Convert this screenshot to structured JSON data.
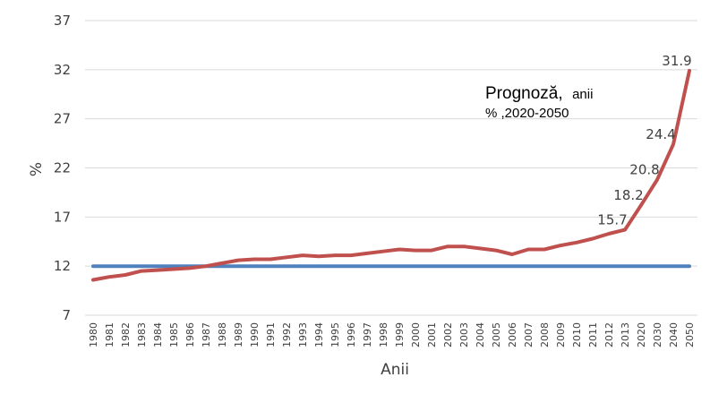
{
  "chart_data": {
    "type": "line",
    "title": "",
    "xlabel": "Anii",
    "ylabel": "%",
    "ylim": [
      7,
      37
    ],
    "yticks": [
      7,
      12,
      17,
      22,
      27,
      32,
      37
    ],
    "grid": "horizontal",
    "categories": [
      "1980",
      "1981",
      "1982",
      "1983",
      "1984",
      "1985",
      "1986",
      "1987",
      "1988",
      "1989",
      "1990",
      "1991",
      "1992",
      "1993",
      "1994",
      "1995",
      "1996",
      "1997",
      "1998",
      "1999",
      "2000",
      "2001",
      "2002",
      "2003",
      "2004",
      "2005",
      "2006",
      "2007",
      "2008",
      "2009",
      "2010",
      "2011",
      "2012",
      "2013",
      "2020",
      "2030",
      "2040",
      "2050"
    ],
    "series": [
      {
        "color": "#c0504d",
        "values": [
          10.6,
          10.9,
          11.1,
          11.5,
          11.6,
          11.7,
          11.8,
          12.0,
          12.3,
          12.6,
          12.7,
          12.7,
          12.9,
          13.1,
          13.0,
          13.1,
          13.1,
          13.3,
          13.5,
          13.7,
          13.6,
          13.6,
          14.0,
          14.0,
          13.8,
          13.6,
          13.2,
          13.7,
          13.7,
          14.1,
          14.4,
          14.8,
          15.3,
          15.7,
          18.2,
          20.8,
          24.4,
          31.9
        ]
      },
      {
        "color": "#4f81bd",
        "values": [
          12,
          12,
          12,
          12,
          12,
          12,
          12,
          12,
          12,
          12,
          12,
          12,
          12,
          12,
          12,
          12,
          12,
          12,
          12,
          12,
          12,
          12,
          12,
          12,
          12,
          12,
          12,
          12,
          12,
          12,
          12,
          12,
          12,
          12,
          12,
          12,
          12,
          12
        ]
      }
    ],
    "data_labels": [
      {
        "category": "2013",
        "value": 15.7,
        "text": "15.7"
      },
      {
        "category": "2020",
        "value": 18.2,
        "text": "18.2"
      },
      {
        "category": "2030",
        "value": 20.8,
        "text": "20.8"
      },
      {
        "category": "2040",
        "value": 24.4,
        "text": "24.4"
      },
      {
        "category": "2050",
        "value": 31.9,
        "text": "31.9"
      }
    ],
    "annotation": {
      "line1_main": "Prognoză,",
      "line1_small": "anii",
      "line2": "%  ,2020-2050"
    }
  }
}
